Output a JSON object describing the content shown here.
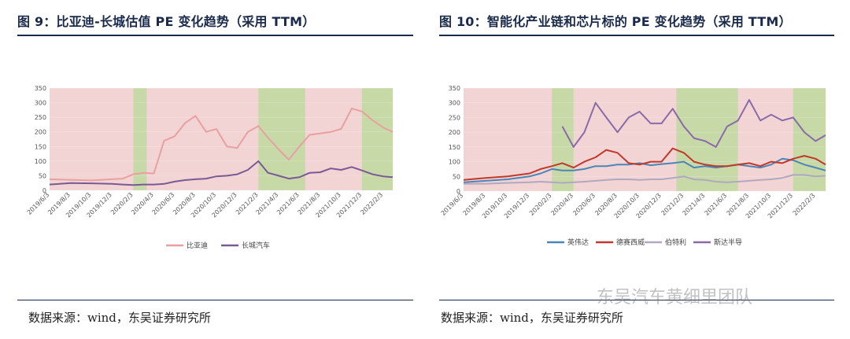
{
  "left": {
    "title": "图 9：比亚迪-长城估值 PE 变化趋势（采用 TTM）",
    "source": "数据来源：wind，东吴证券研究所"
  },
  "right": {
    "title": "图 10：智能化产业链和芯片标的 PE 变化趋势（采用 TTM）",
    "source": "数据来源：wind，东吴证券研究所"
  },
  "watermark": "东吴汽车黄细里团队",
  "chart_data": [
    {
      "type": "line",
      "title": "",
      "xlabel": "",
      "ylabel": "",
      "ylim": [
        0,
        350
      ],
      "yticks": [
        0,
        50,
        100,
        150,
        200,
        250,
        300,
        350
      ],
      "x_ticks": [
        "2019/6/3",
        "2019/8/3",
        "2019/10/3",
        "2019/12/3",
        "2020/2/3",
        "2020/4/3",
        "2020/6/3",
        "2020/8/3",
        "2020/10/3",
        "2020/12/3",
        "2021/2/3",
        "2021/4/3",
        "2021/6/3",
        "2021/8/3",
        "2021/10/3",
        "2021/12/3",
        "2022/2/3"
      ],
      "x": [
        "2019/6/3",
        "2019/8/3",
        "2019/10/3",
        "2019/12/3",
        "2020/1/3",
        "2020/2/3",
        "2020/3/3",
        "2020/4/3",
        "2020/5/3",
        "2020/6/3",
        "2020/7/3",
        "2020/8/3",
        "2020/9/3",
        "2020/10/3",
        "2020/11/3",
        "2020/12/3",
        "2021/1/3",
        "2021/2/3",
        "2021/3/3",
        "2021/4/3",
        "2021/5/3",
        "2021/6/3",
        "2021/7/3",
        "2021/8/3",
        "2021/9/3",
        "2021/10/3",
        "2021/11/3",
        "2021/12/3",
        "2022/1/3",
        "2022/2/3",
        "2022/3/3"
      ],
      "series": [
        {
          "name": "比亚迪",
          "color": "#e8a0a0",
          "values": [
            38,
            36,
            34,
            38,
            40,
            55,
            60,
            58,
            170,
            185,
            230,
            255,
            200,
            210,
            150,
            145,
            200,
            220,
            180,
            140,
            105,
            150,
            190,
            195,
            200,
            210,
            280,
            270,
            240,
            215,
            200
          ]
        },
        {
          "name": "长城汽车",
          "color": "#7a5a95",
          "values": [
            20,
            25,
            24,
            22,
            20,
            18,
            20,
            20,
            22,
            30,
            35,
            38,
            40,
            48,
            50,
            55,
            70,
            100,
            60,
            50,
            40,
            45,
            60,
            62,
            75,
            70,
            80,
            68,
            55,
            48,
            45
          ]
        }
      ],
      "bands": [
        {
          "start": "2020/2/3",
          "end": "2020/3/13",
          "color": "#c8d9a8"
        },
        {
          "start": "2021/2/3",
          "end": "2021/6/20",
          "color": "#c8d9a8"
        },
        {
          "start": "2021/12/3",
          "end": "2022/3/3",
          "color": "#c8d9a8"
        }
      ],
      "band_fill_other": "#f3d4d4",
      "legend": "bottom-center"
    },
    {
      "type": "line",
      "title": "",
      "xlabel": "",
      "ylabel": "",
      "ylim": [
        0,
        350
      ],
      "yticks": [
        0,
        50,
        100,
        150,
        200,
        250,
        300,
        350
      ],
      "x_ticks": [
        "2019/6/3",
        "2019/8/3",
        "2019/10/3",
        "2019/12/3",
        "2020/2/3",
        "2020/4/3",
        "2020/6/3",
        "2020/8/3",
        "2020/10/3",
        "2020/12/3",
        "2021/2/3",
        "2021/4/3",
        "2021/6/3",
        "2021/8/3",
        "2021/10/3",
        "2021/12/3",
        "2022/2/3"
      ],
      "x": [
        "2019/6/3",
        "2019/8/3",
        "2019/10/3",
        "2019/12/3",
        "2020/1/3",
        "2020/2/3",
        "2020/3/3",
        "2020/4/3",
        "2020/5/3",
        "2020/6/3",
        "2020/7/3",
        "2020/8/3",
        "2020/9/3",
        "2020/10/3",
        "2020/11/3",
        "2020/12/3",
        "2021/1/3",
        "2021/2/3",
        "2021/3/3",
        "2021/4/3",
        "2021/5/3",
        "2021/6/3",
        "2021/7/3",
        "2021/8/3",
        "2021/9/3",
        "2021/10/3",
        "2021/11/3",
        "2021/12/3",
        "2022/1/3",
        "2022/2/3",
        "2022/3/3"
      ],
      "series": [
        {
          "name": "英伟达",
          "color": "#4a86b8",
          "values": [
            30,
            35,
            40,
            50,
            60,
            75,
            70,
            70,
            75,
            85,
            85,
            90,
            90,
            95,
            88,
            92,
            95,
            100,
            80,
            85,
            80,
            85,
            90,
            85,
            80,
            90,
            110,
            105,
            90,
            80,
            70
          ]
        },
        {
          "name": "德赛西威",
          "color": "#c0392b",
          "values": [
            38,
            45,
            50,
            60,
            75,
            85,
            95,
            80,
            100,
            115,
            140,
            130,
            95,
            90,
            100,
            100,
            145,
            130,
            100,
            90,
            85,
            85,
            90,
            95,
            85,
            100,
            95,
            110,
            120,
            110,
            90
          ]
        },
        {
          "name": "伯特利",
          "color": "#b0a8c0",
          "values": [
            25,
            25,
            28,
            30,
            32,
            30,
            28,
            30,
            32,
            35,
            38,
            40,
            40,
            38,
            40,
            40,
            45,
            50,
            40,
            38,
            32,
            30,
            32,
            35,
            38,
            40,
            45,
            55,
            55,
            50,
            52
          ]
        },
        {
          "name": "斯达半导",
          "color": "#8a6aa8",
          "values": [
            null,
            null,
            null,
            null,
            null,
            null,
            220,
            150,
            200,
            300,
            250,
            200,
            250,
            270,
            230,
            230,
            280,
            220,
            180,
            170,
            150,
            220,
            240,
            310,
            240,
            260,
            240,
            250,
            200,
            170,
            190
          ]
        }
      ],
      "bands": [
        {
          "start": "2020/2/3",
          "end": "2020/4/3",
          "color": "#c8d9a8"
        },
        {
          "start": "2021/1/13",
          "end": "2021/7/3",
          "color": "#c8d9a8"
        },
        {
          "start": "2021/12/3",
          "end": "2022/3/3",
          "color": "#c8d9a8"
        }
      ],
      "band_fill_other": "#f3d4d4",
      "legend": "bottom-center"
    }
  ]
}
